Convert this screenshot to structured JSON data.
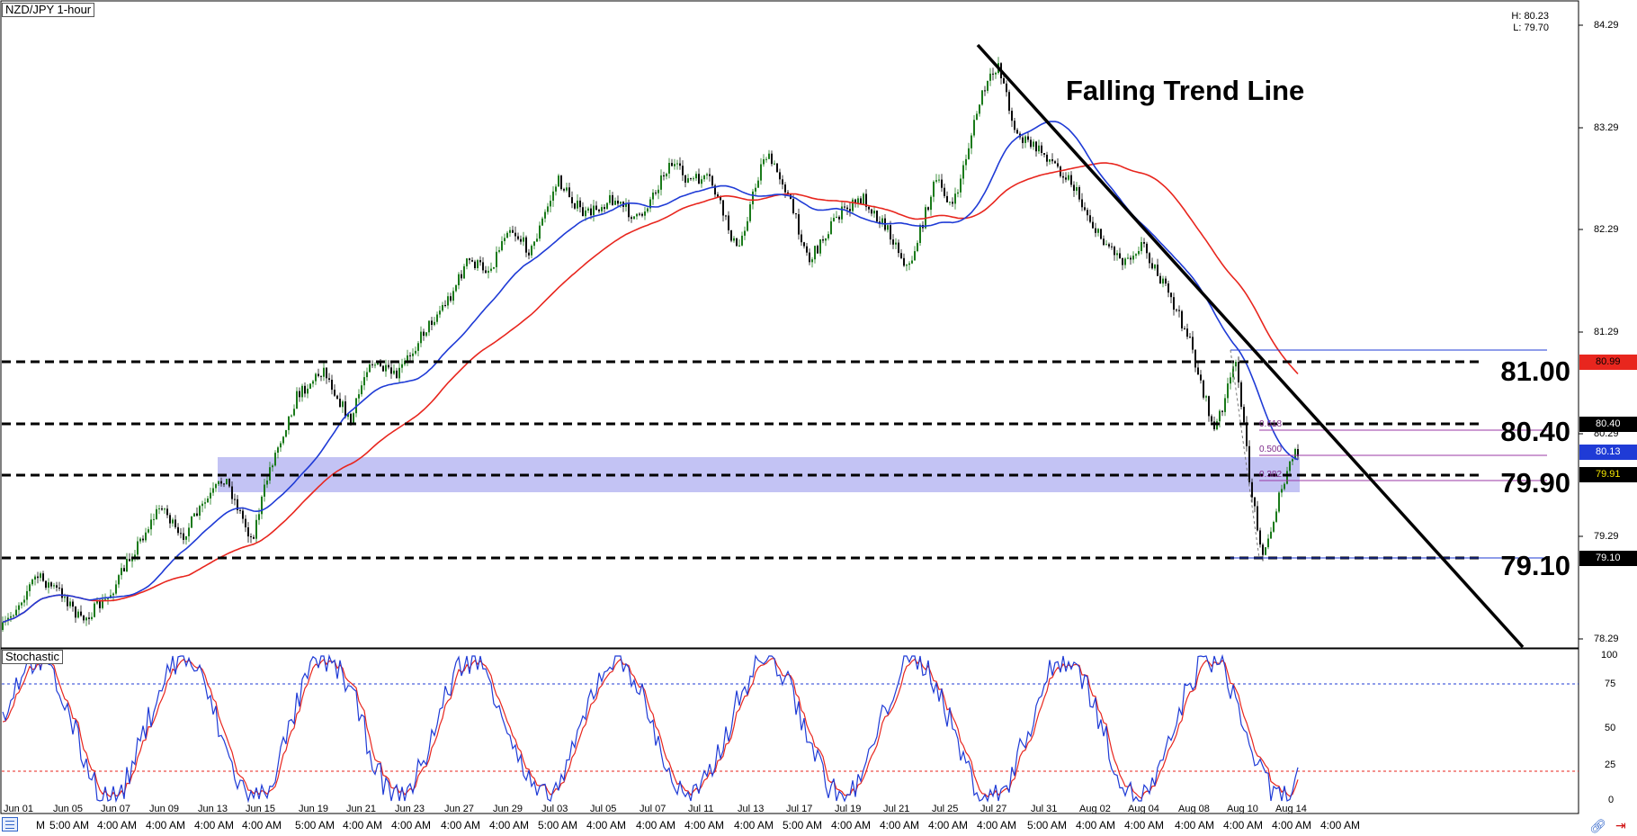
{
  "chart_header": {
    "symbol": "NZD/JPY 1-hour",
    "high": "H: 80.23",
    "low": "L: 79.70"
  },
  "annotation": "Falling Trend Line",
  "levels": [
    {
      "label": "81.00",
      "tag": "80.99",
      "tag_color": "#e8261e"
    },
    {
      "label": "80.40",
      "tag": "80.40",
      "tag_color": "#000000"
    },
    {
      "label": "79.90",
      "tag": "79.91",
      "tag_color": "#000000"
    },
    {
      "label": "79.10",
      "tag": "79.10",
      "tag_color": "#000000"
    }
  ],
  "current_price_tag": {
    "value": "80.13",
    "color": "#1f3bd6"
  },
  "fib_labels": [
    "0.618",
    "0.500",
    "0.382"
  ],
  "indicator": {
    "name": "Stochastic",
    "scale": [
      "100",
      "75",
      "50",
      "25",
      "0"
    ],
    "overbought": 80,
    "oversold": 20
  },
  "colors": {
    "ma_fast": "#1f3bd6",
    "ma_slow": "#e8261e",
    "candle_up": "#1a7a1a",
    "candle_down": "#0a0a0a",
    "zone": "#b9b9f2",
    "stoch_k": "#1f3bd6",
    "stoch_d": "#e8261e"
  },
  "price_axis": [
    "84.29",
    "83.29",
    "82.29",
    "81.29",
    "80.29",
    "79.29",
    "78.29"
  ],
  "date_labels": [
    "Jun 01",
    "Jun 05",
    "Jun 07",
    "Jun 09",
    "Jun 13",
    "Jun 15",
    "Jun 19",
    "Jun 21",
    "Jun 23",
    "Jun 27",
    "Jun 29",
    "Jul 03",
    "Jul 05",
    "Jul 07",
    "Jul 11",
    "Jul 13",
    "Jul 17",
    "Jul 19",
    "Jul 21",
    "Jul 25",
    "Jul 27",
    "Jul 31",
    "Aug 02",
    "Aug 04",
    "Aug 08",
    "Aug 10",
    "Aug 14"
  ],
  "time_labels": [
    "M",
    "5:00 AM",
    "4:00 AM",
    "4:00 AM",
    "4:00 AM",
    "4:00 AM",
    "5:00 AM",
    "4:00 AM",
    "4:00 AM",
    "4:00 AM",
    "4:00 AM",
    "5:00 AM",
    "4:00 AM",
    "4:00 AM",
    "4:00 AM",
    "4:00 AM",
    "5:00 AM",
    "4:00 AM",
    "4:00 AM",
    "4:00 AM",
    "4:00 AM",
    "5:00 AM",
    "4:00 AM",
    "4:00 AM",
    "4:00 AM",
    "4:00 AM",
    "4:00 AM",
    "4:00 AM"
  ],
  "icons": [
    "chart-grid-icon",
    "link-icon",
    "autoscroll-arrow-icon"
  ]
}
